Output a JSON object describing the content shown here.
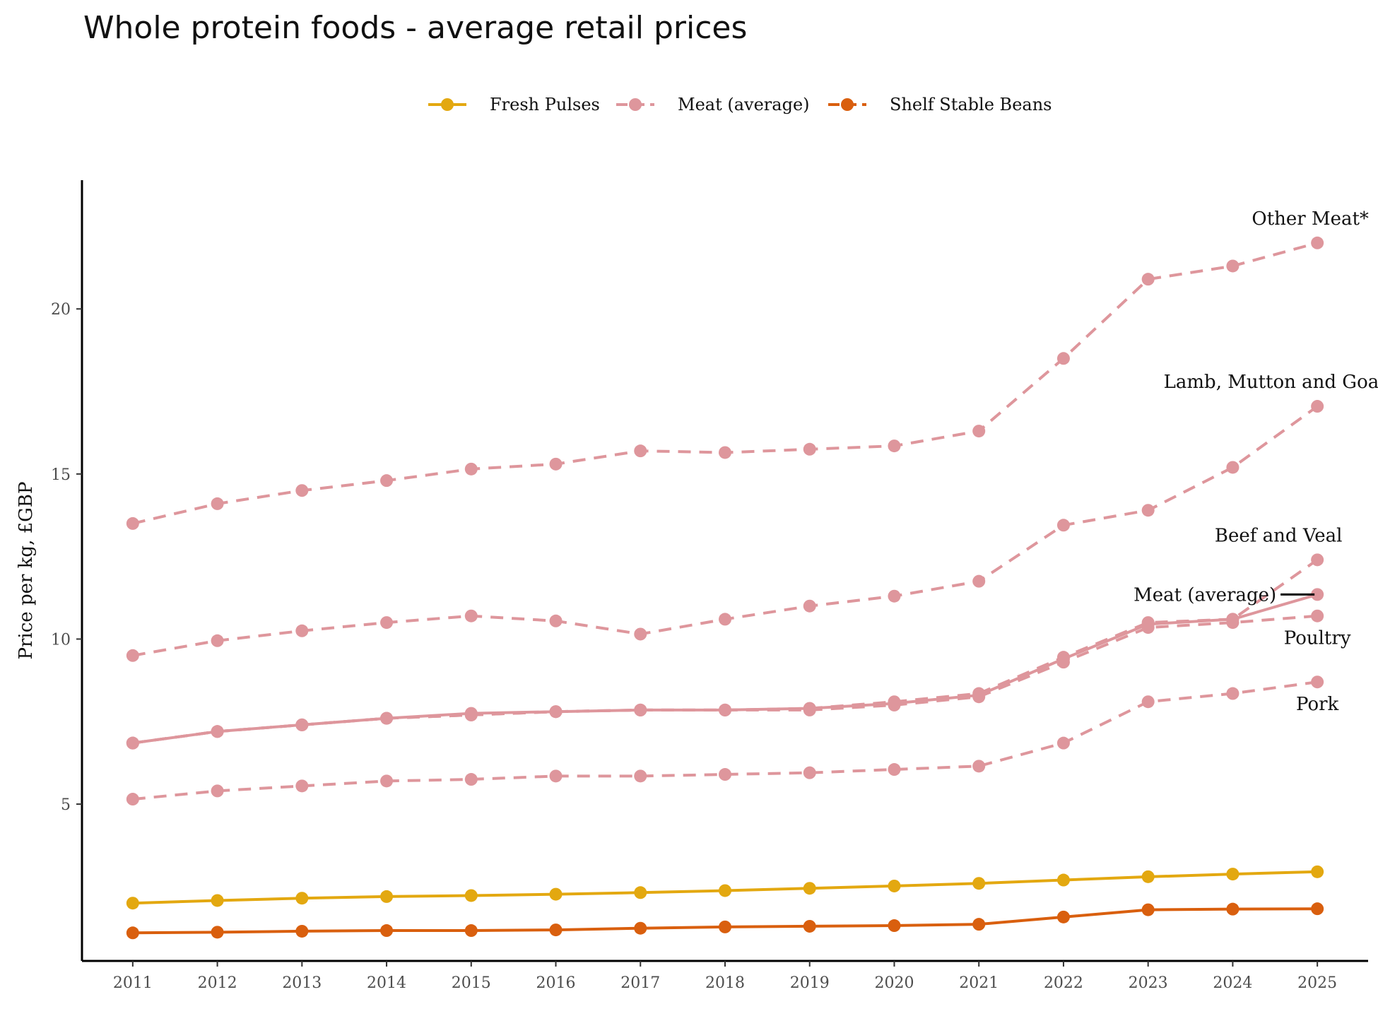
{
  "title": "Whole protein foods - average retail prices",
  "chart_data": {
    "type": "line",
    "title": "Whole protein foods - average retail prices",
    "xlabel": "",
    "ylabel": "Price per kg, £GBP",
    "x": [
      2011,
      2012,
      2013,
      2014,
      2015,
      2016,
      2017,
      2018,
      2019,
      2020,
      2021,
      2022,
      2023,
      2024,
      2025
    ],
    "xlim": [
      2010.4,
      2025.6
    ],
    "ylim": [
      0.25,
      23.9
    ],
    "yticks": [
      5,
      10,
      15,
      20
    ],
    "grid": false,
    "legend": {
      "position": "top",
      "entries": [
        {
          "label": "Fresh Pulses",
          "color": "#E3A810",
          "dash": "solid"
        },
        {
          "label": "Meat (average)",
          "color": "#DE969C",
          "dash": "dashed"
        },
        {
          "label": "Shelf Stable Beans",
          "color": "#D95F0E",
          "dash": "dashed"
        }
      ]
    },
    "series": [
      {
        "name": "Other Meat*",
        "color": "#DE969C",
        "dash": "dashed",
        "values": [
          13.5,
          14.1,
          14.5,
          14.8,
          15.15,
          15.3,
          15.7,
          15.65,
          15.75,
          15.85,
          16.3,
          18.5,
          20.9,
          21.3,
          22.0
        ]
      },
      {
        "name": "Lamb, Mutton and Goat",
        "color": "#DE969C",
        "dash": "dashed",
        "values": [
          9.5,
          9.95,
          10.25,
          10.5,
          10.7,
          10.55,
          10.15,
          10.6,
          11.0,
          11.3,
          11.75,
          13.45,
          13.9,
          15.2,
          17.05
        ]
      },
      {
        "name": "Beef and Veal",
        "color": "#DE969C",
        "dash": "dashed",
        "values": [
          6.85,
          7.2,
          7.4,
          7.6,
          7.7,
          7.8,
          7.85,
          7.85,
          7.9,
          8.1,
          8.35,
          9.45,
          10.5,
          10.6,
          12.4
        ]
      },
      {
        "name": "Poultry",
        "color": "#DE969C",
        "dash": "dashed",
        "values": [
          6.85,
          7.2,
          7.4,
          7.6,
          7.7,
          7.8,
          7.85,
          7.85,
          7.85,
          8.0,
          8.25,
          9.3,
          10.35,
          10.5,
          10.7
        ]
      },
      {
        "name": "Pork",
        "color": "#DE969C",
        "dash": "dashed",
        "values": [
          5.15,
          5.4,
          5.55,
          5.7,
          5.75,
          5.85,
          5.85,
          5.9,
          5.95,
          6.05,
          6.15,
          6.85,
          8.1,
          8.35,
          8.7
        ]
      },
      {
        "name": "Meat (average)",
        "color": "#DE969C",
        "dash": "solid",
        "values": [
          6.85,
          7.2,
          7.4,
          7.6,
          7.75,
          7.8,
          7.85,
          7.85,
          7.9,
          8.05,
          8.3,
          9.4,
          10.45,
          10.6,
          11.35
        ]
      },
      {
        "name": "Fresh Pulses",
        "color": "#E3A810",
        "dash": "solid",
        "values": [
          2.0,
          2.08,
          2.15,
          2.2,
          2.23,
          2.27,
          2.32,
          2.38,
          2.45,
          2.52,
          2.6,
          2.7,
          2.8,
          2.88,
          2.95
        ]
      },
      {
        "name": "Shelf Stable Beans",
        "color": "#D95F0E",
        "dash": "solid",
        "values": [
          1.1,
          1.12,
          1.15,
          1.17,
          1.17,
          1.19,
          1.24,
          1.28,
          1.3,
          1.32,
          1.36,
          1.58,
          1.8,
          1.82,
          1.83
        ]
      }
    ],
    "annotations": [
      {
        "text": "Other Meat*",
        "series": "Other Meat*"
      },
      {
        "text": "Lamb, Mutton and Goat",
        "series": "Lamb, Mutton and Goat"
      },
      {
        "text": "Beef and Veal",
        "series": "Beef and Veal"
      },
      {
        "text": "Meat (average)",
        "series": "Meat (average)"
      },
      {
        "text": "Poultry",
        "series": "Poultry"
      },
      {
        "text": "Pork",
        "series": "Pork"
      }
    ]
  }
}
